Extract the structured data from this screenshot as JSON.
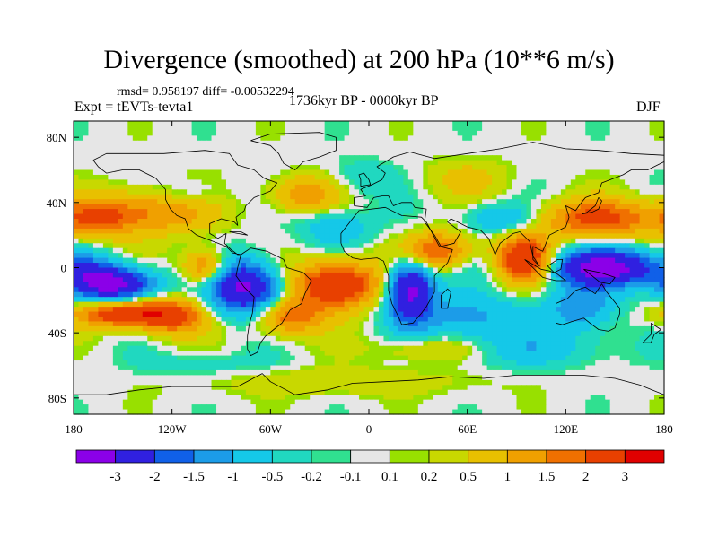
{
  "header": {
    "title": "Divergence (smoothed) at 200 hPa (10**6 m/s)",
    "stats": "rmsd= 0.958197 diff= -0.00532294",
    "experiment": "Expt = tEVTs-tevta1",
    "period": "1736kyr BP - 0000kyr BP",
    "season": "DJF"
  },
  "colors": {
    "levels": [
      "#8B00E8",
      "#3020E0",
      "#1060E8",
      "#1C9CE8",
      "#15C8E8",
      "#20D8C0",
      "#30E090",
      "#E6E6E6",
      "#98E000",
      "#C8D800",
      "#E8C000",
      "#F0A000",
      "#F07000",
      "#E84000",
      "#E00000"
    ]
  },
  "chart_data": {
    "type": "heatmap",
    "title": "Divergence (smoothed) at 200 hPa (10**6 m/s)",
    "units": "10**6 m/s",
    "xlim": [
      -180,
      180
    ],
    "ylim": [
      -90,
      90
    ],
    "x_ticks": [
      -180,
      -120,
      -60,
      0,
      60,
      120,
      180
    ],
    "x_tick_labels": [
      "180",
      "120W",
      "60W",
      "0",
      "60E",
      "120E",
      "180"
    ],
    "y_ticks": [
      80,
      40,
      0,
      -40,
      -80
    ],
    "y_tick_labels": [
      "80N",
      "40N",
      "0",
      "40S",
      "80S"
    ],
    "colorbar": {
      "labels": [
        "-3",
        "-2",
        "-1.5",
        "-1",
        "-0.5",
        "-0.2",
        "-0.1",
        "0.1",
        "0.2",
        "0.5",
        "1",
        "1.5",
        "2",
        "3"
      ],
      "levels": [
        -3,
        -2,
        -1.5,
        -1,
        -0.5,
        -0.2,
        -0.1,
        0.1,
        0.2,
        0.5,
        1,
        1.5,
        2,
        3
      ]
    },
    "field_blobs": [
      {
        "lon": -155,
        "lat": -10,
        "w": 18,
        "h": 8,
        "amp": -3.6
      },
      {
        "lon": -75,
        "lat": -12,
        "w": 16,
        "h": 12,
        "amp": -3.4
      },
      {
        "lon": 25,
        "lat": -12,
        "w": 10,
        "h": 14,
        "amp": -3.4
      },
      {
        "lon": 145,
        "lat": 0,
        "w": 28,
        "h": 8,
        "amp": -3.2
      },
      {
        "lon": -100,
        "lat": 0,
        "w": 10,
        "h": 8,
        "amp": 2.2
      },
      {
        "lon": -20,
        "lat": -10,
        "w": 18,
        "h": 10,
        "amp": 3.3
      },
      {
        "lon": 40,
        "lat": 10,
        "w": 15,
        "h": 8,
        "amp": 2.3
      },
      {
        "lon": 95,
        "lat": 5,
        "w": 12,
        "h": 10,
        "amp": 3.1
      },
      {
        "lon": -150,
        "lat": -28,
        "w": 20,
        "h": 6,
        "amp": 2.8
      },
      {
        "lon": -120,
        "lat": -30,
        "w": 15,
        "h": 8,
        "amp": 2.0
      },
      {
        "lon": -50,
        "lat": -30,
        "w": 15,
        "h": 8,
        "amp": 2.0
      },
      {
        "lon": 140,
        "lat": 30,
        "w": 25,
        "h": 8,
        "amp": 2.2
      },
      {
        "lon": -130,
        "lat": 35,
        "w": 25,
        "h": 10,
        "amp": 1.6
      },
      {
        "lon": -40,
        "lat": 45,
        "w": 15,
        "h": 8,
        "amp": 1.4
      },
      {
        "lon": -165,
        "lat": 30,
        "w": 15,
        "h": 8,
        "amp": 1.6
      },
      {
        "lon": 60,
        "lat": -30,
        "w": 25,
        "h": 10,
        "amp": -1.2
      },
      {
        "lon": -20,
        "lat": 25,
        "w": 15,
        "h": 8,
        "amp": -1.0
      },
      {
        "lon": 80,
        "lat": 30,
        "w": 15,
        "h": 6,
        "amp": -1.2
      },
      {
        "lon": 90,
        "lat": -50,
        "w": 40,
        "h": 8,
        "amp": -0.8
      },
      {
        "lon": -110,
        "lat": 45,
        "w": 15,
        "h": 6,
        "amp": -0.7
      },
      {
        "lon": 130,
        "lat": -25,
        "w": 15,
        "h": 10,
        "amp": -1.4
      },
      {
        "lon": -5,
        "lat": 55,
        "w": 15,
        "h": 8,
        "amp": -0.5
      },
      {
        "lon": 60,
        "lat": 55,
        "w": 20,
        "h": 8,
        "amp": 0.6
      },
      {
        "lon": -20,
        "lat": -70,
        "w": 60,
        "h": 6,
        "amp": 0.5
      },
      {
        "lon": 40,
        "lat": -50,
        "w": 25,
        "h": 6,
        "amp": 1.0
      },
      {
        "lon": -100,
        "lat": -60,
        "w": 30,
        "h": 6,
        "amp": -0.4
      }
    ]
  }
}
